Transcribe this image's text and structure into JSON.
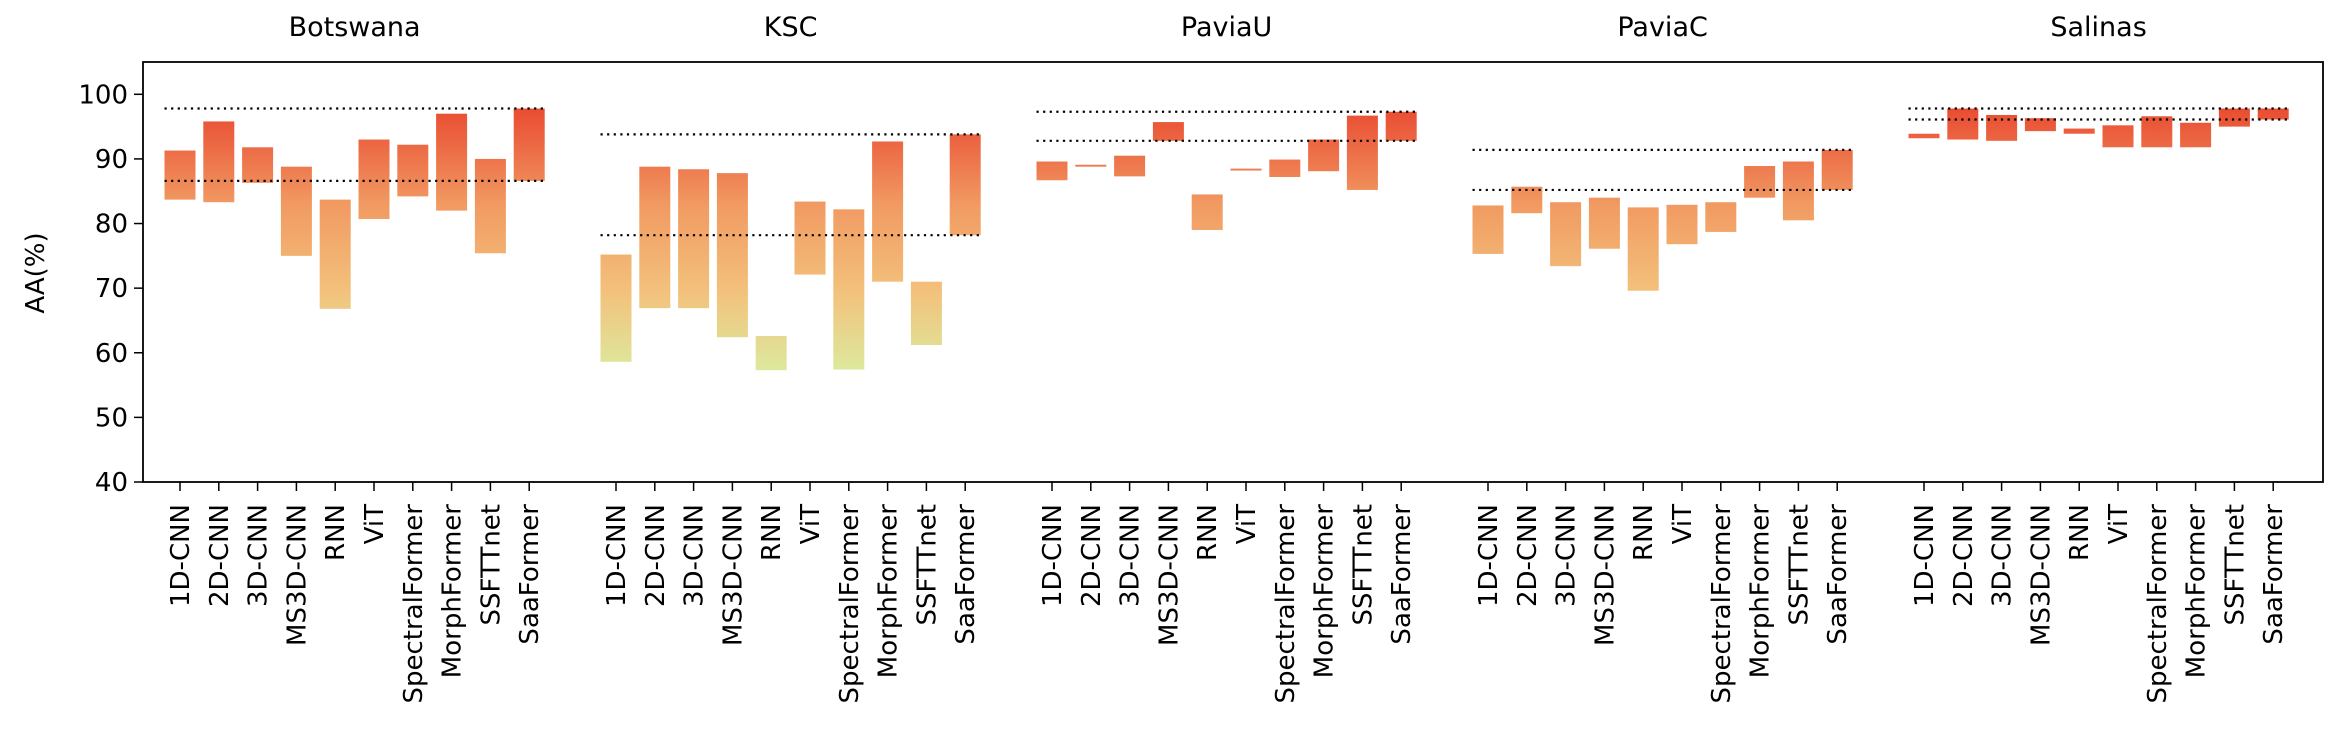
{
  "chart_data": {
    "type": "floating-bar",
    "ylabel": "AA(%)",
    "ylim": [
      40,
      105
    ],
    "yticks": [
      40,
      50,
      60,
      70,
      80,
      90,
      100
    ],
    "methods": [
      "1D-CNN",
      "2D-CNN",
      "3D-CNN",
      "MS3D-CNN",
      "RNN",
      "ViT",
      "SpectralFormer",
      "MorphFormer",
      "SSFTTnet",
      "SaaFormer"
    ],
    "groups": [
      {
        "title": "Botswana",
        "ranges": [
          [
            83.7,
            91.3
          ],
          [
            83.3,
            95.8
          ],
          [
            86.3,
            91.8
          ],
          [
            75.0,
            88.8
          ],
          [
            66.8,
            83.7
          ],
          [
            80.7,
            93.0
          ],
          [
            84.2,
            92.2
          ],
          [
            82.0,
            97.0
          ],
          [
            75.4,
            90.0
          ],
          [
            86.6,
            97.8
          ]
        ],
        "ref_lines": [
          97.8,
          86.6
        ]
      },
      {
        "title": "KSC",
        "ranges": [
          [
            58.6,
            75.2
          ],
          [
            66.9,
            88.8
          ],
          [
            66.9,
            88.4
          ],
          [
            62.4,
            87.8
          ],
          [
            57.3,
            62.6
          ],
          [
            72.1,
            83.4
          ],
          [
            57.4,
            82.2
          ],
          [
            71.0,
            92.7
          ],
          [
            61.2,
            71.0
          ],
          [
            78.2,
            93.8
          ]
        ],
        "ref_lines": [
          93.8,
          78.2
        ]
      },
      {
        "title": "PaviaU",
        "ranges": [
          [
            86.7,
            89.6
          ],
          [
            88.8,
            89.1
          ],
          [
            87.3,
            90.5
          ],
          [
            92.8,
            95.7
          ],
          [
            79.0,
            84.5
          ],
          [
            88.2,
            88.5
          ],
          [
            87.2,
            89.9
          ],
          [
            88.1,
            93.0
          ],
          [
            85.2,
            96.7
          ],
          [
            92.8,
            97.3
          ]
        ],
        "ref_lines": [
          97.3,
          92.8
        ]
      },
      {
        "title": "PaviaC",
        "ranges": [
          [
            75.3,
            82.8
          ],
          [
            81.6,
            85.7
          ],
          [
            73.4,
            83.3
          ],
          [
            76.1,
            84.0
          ],
          [
            69.6,
            82.5
          ],
          [
            76.8,
            82.9
          ],
          [
            78.7,
            83.3
          ],
          [
            84.0,
            88.9
          ],
          [
            80.5,
            89.6
          ],
          [
            85.2,
            91.4
          ]
        ],
        "ref_lines": [
          91.4,
          85.2
        ]
      },
      {
        "title": "Salinas",
        "ranges": [
          [
            93.2,
            93.9
          ],
          [
            93.0,
            97.8
          ],
          [
            92.8,
            96.8
          ],
          [
            94.3,
            96.3
          ],
          [
            93.9,
            94.7
          ],
          [
            91.8,
            95.2
          ],
          [
            91.8,
            96.6
          ],
          [
            91.8,
            95.6
          ],
          [
            95.0,
            97.8
          ],
          [
            96.1,
            97.8
          ]
        ],
        "ref_lines": [
          97.8,
          96.1
        ]
      }
    ]
  }
}
